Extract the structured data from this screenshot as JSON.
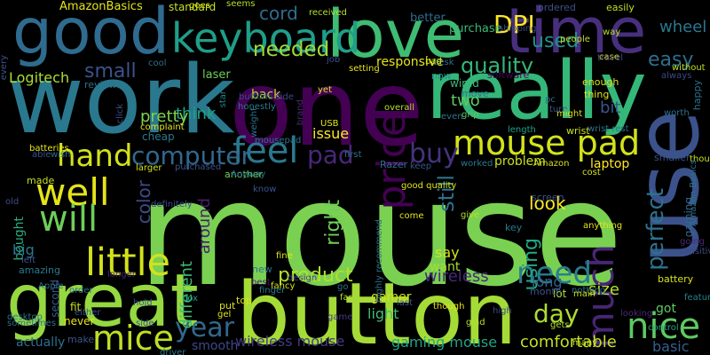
{
  "words": [
    {
      "text": "mouse",
      "color": "#7ad151"
    },
    {
      "text": "one",
      "color": "#440154"
    },
    {
      "text": "work",
      "color": "#2a788e"
    },
    {
      "text": "really",
      "color": "#35b779"
    },
    {
      "text": "button",
      "color": "#a5db36"
    },
    {
      "text": "great",
      "color": "#95d840"
    },
    {
      "text": "love",
      "color": "#3fbc73"
    },
    {
      "text": "good",
      "color": "#2f6b8e"
    },
    {
      "text": "time",
      "color": "#472f7d"
    },
    {
      "text": "use",
      "color": "#3b528b"
    },
    {
      "text": "keyboard",
      "color": "#1f9e89"
    },
    {
      "text": "mouse pad",
      "color": "#d2e21b"
    },
    {
      "text": "price",
      "color": "#440154"
    },
    {
      "text": "much",
      "color": "#482677"
    },
    {
      "text": "little",
      "color": "#d2e21b"
    },
    {
      "text": "well",
      "color": "#e5e419"
    },
    {
      "text": "will",
      "color": "#6ece58"
    },
    {
      "text": "hand",
      "color": "#d2e21b"
    },
    {
      "text": "feel",
      "color": "#2a788e"
    },
    {
      "text": "mice",
      "color": "#bddf26"
    },
    {
      "text": "nice",
      "color": "#5ec962"
    },
    {
      "text": "computer",
      "color": "#31688e"
    },
    {
      "text": "need",
      "color": "#287d8e"
    },
    {
      "text": "DPI",
      "color": "#fde725"
    },
    {
      "text": "small",
      "color": "#3b528b"
    },
    {
      "text": "quality",
      "color": "#35b779"
    },
    {
      "text": "pad",
      "color": "#482878"
    },
    {
      "text": "needed",
      "color": "#a0da39"
    },
    {
      "text": "day",
      "color": "#addc30"
    },
    {
      "text": "year",
      "color": "#31688e"
    },
    {
      "text": "cord",
      "color": "#2e6e8e"
    },
    {
      "text": "easy",
      "color": "#2e6e8e"
    },
    {
      "text": "used",
      "color": "#21918c"
    },
    {
      "text": "product",
      "color": "#b5de2b"
    },
    {
      "text": "perfect",
      "color": "#2c728e"
    },
    {
      "text": "buy",
      "color": "#46337e"
    },
    {
      "text": "Logitech",
      "color": "#addc30"
    },
    {
      "text": "using",
      "color": "#22a884"
    },
    {
      "text": "still",
      "color": "#2c728e"
    },
    {
      "text": "wireless",
      "color": "#482878"
    },
    {
      "text": "wireless mouse",
      "color": "#443983"
    },
    {
      "text": "gaming mouse",
      "color": "#20a486"
    },
    {
      "text": "comfortable",
      "color": "#c2df23"
    },
    {
      "text": "color",
      "color": "#3e4989"
    },
    {
      "text": "right",
      "color": "#6ece58"
    },
    {
      "text": "size",
      "color": "#b5de2b"
    },
    {
      "text": "look",
      "color": "#fde725"
    },
    {
      "text": "two",
      "color": "#5ec962"
    },
    {
      "text": "bit",
      "color": "#39558c"
    },
    {
      "text": "wheel",
      "color": "#2a788e"
    },
    {
      "text": "think",
      "color": "#1fa188"
    },
    {
      "text": "pretty",
      "color": "#7fd34e"
    },
    {
      "text": "laptop",
      "color": "#fde725"
    },
    {
      "text": "problem",
      "color": "#c8e020"
    },
    {
      "text": "light",
      "color": "#3fbc73"
    },
    {
      "text": "long",
      "color": "#32648e"
    },
    {
      "text": "around",
      "color": "#481f70"
    },
    {
      "text": "basic",
      "color": "#355f8d"
    },
    {
      "text": "smooth",
      "color": "#3f4889"
    },
    {
      "text": "actually",
      "color": "#2d708e"
    },
    {
      "text": "bought",
      "color": "#26ad81"
    },
    {
      "text": "big",
      "color": "#2a788e"
    },
    {
      "text": "say",
      "color": "#d0e11c"
    },
    {
      "text": "want",
      "color": "#aadc32"
    },
    {
      "text": "issue",
      "color": "#fde725"
    },
    {
      "text": "cheap",
      "color": "#2a788e"
    },
    {
      "text": "laser",
      "color": "#6ece58"
    },
    {
      "text": "back",
      "color": "#a8db34"
    },
    {
      "text": "purchase",
      "color": "#3aba76"
    },
    {
      "text": "better",
      "color": "#2f6c8e"
    },
    {
      "text": "AmazonBasics",
      "color": "#e3e418"
    },
    {
      "text": "standard",
      "color": "#c5e021"
    },
    {
      "text": "seems",
      "color": "#b5de2b"
    },
    {
      "text": "ordered",
      "color": "#3b528b"
    },
    {
      "text": "easily",
      "color": "#c2df23"
    },
    {
      "text": "wired",
      "color": "#3bbb75"
    },
    {
      "text": "responsive",
      "color": "#e7e419"
    },
    {
      "text": "software",
      "color": "#450559"
    },
    {
      "text": "now",
      "color": "#1f958b"
    },
    {
      "text": "thing",
      "color": "#e2e418"
    },
    {
      "text": "enough",
      "color": "#d5e21a"
    },
    {
      "text": "happy",
      "color": "#2c728e"
    },
    {
      "text": "review",
      "color": "#2c728e"
    },
    {
      "text": "people",
      "color": "#c2df23"
    },
    {
      "text": "gaming",
      "color": "#31688e"
    },
    {
      "text": "battery",
      "color": "#d8e219"
    },
    {
      "text": "another",
      "color": "#70cf57"
    },
    {
      "text": "purchased",
      "color": "#3b528b"
    },
    {
      "text": "Amazon",
      "color": "#d5e21a"
    },
    {
      "text": "different",
      "color": "#3dbc74"
    },
    {
      "text": "box",
      "color": "#1fa188"
    },
    {
      "text": "gamer",
      "color": "#d2e21b"
    },
    {
      "text": "fit",
      "color": "#c5e021"
    },
    {
      "text": "got",
      "color": "#5ec962"
    },
    {
      "text": "lot",
      "color": "#a8db34"
    },
    {
      "text": "top",
      "color": "#d8e219"
    },
    {
      "text": "game",
      "color": "#443983"
    },
    {
      "text": "second",
      "color": "#365d8d"
    },
    {
      "text": "made",
      "color": "#c8e020"
    },
    {
      "text": "new",
      "color": "#2c728e"
    },
    {
      "text": "never",
      "color": "#e5e419"
    },
    {
      "text": "make",
      "color": "#3a548c"
    },
    {
      "text": "amazing",
      "color": "#297b8e"
    },
    {
      "text": "mousepad",
      "color": "#2b748e"
    },
    {
      "text": "Razer",
      "color": "#2c718e"
    },
    {
      "text": "keep",
      "color": "#3a548c"
    },
    {
      "text": "worked",
      "color": "#2a778e"
    },
    {
      "text": "screen",
      "color": "#39558c"
    },
    {
      "text": "key",
      "color": "#2a788e"
    },
    {
      "text": "fancy",
      "color": "#d2e21b"
    },
    {
      "text": "put",
      "color": "#d8e219"
    },
    {
      "text": "gel",
      "color": "#e7e419"
    },
    {
      "text": "best",
      "color": "#48186a"
    },
    {
      "text": "month",
      "color": "#3b528b"
    },
    {
      "text": "feature",
      "color": "#26828e"
    },
    {
      "text": "glad",
      "color": "#b8de29"
    },
    {
      "text": "looking",
      "color": "#482878"
    },
    {
      "text": "many",
      "color": "#c8e020"
    },
    {
      "text": "side",
      "color": "#3b528b"
    },
    {
      "text": "finger",
      "color": "#2a788e"
    },
    {
      "text": "design",
      "color": "#3e4989"
    },
    {
      "text": "fine",
      "color": "#e1e418"
    },
    {
      "text": "far",
      "color": "#b2dd2d"
    },
    {
      "text": "control",
      "color": "#22a884"
    },
    {
      "text": "gets",
      "color": "#b5de2b"
    },
    {
      "text": "smaller",
      "color": "#3b528b"
    },
    {
      "text": "cost",
      "color": "#d0e11c"
    },
    {
      "text": "wrist",
      "color": "#c8e020"
    },
    {
      "text": "wrist rest",
      "color": "#2c728e"
    },
    {
      "text": "turn",
      "color": "#3a548c"
    },
    {
      "text": "way",
      "color": "#b8de29"
    },
    {
      "text": "pc",
      "color": "#2d708e"
    },
    {
      "text": "case",
      "color": "#e5e419"
    },
    {
      "text": "without",
      "color": "#c2df23"
    },
    {
      "text": "travel",
      "color": "#3f4889"
    },
    {
      "text": "always",
      "color": "#3e4989"
    },
    {
      "text": "might",
      "color": "#d5e21a"
    },
    {
      "text": "worth",
      "color": "#2c728e"
    },
    {
      "text": "length",
      "color": "#1fa188"
    },
    {
      "text": "grip",
      "color": "#5ec962"
    },
    {
      "text": "move",
      "color": "#2a788e"
    },
    {
      "text": "desk",
      "color": "#2c728e"
    },
    {
      "text": "bad",
      "color": "#d2e21b"
    },
    {
      "text": "job",
      "color": "#3b528b"
    },
    {
      "text": "setting",
      "color": "#e7e419"
    },
    {
      "text": "yet",
      "color": "#d8e219"
    },
    {
      "text": "USB",
      "color": "#e1e418"
    },
    {
      "text": "overall",
      "color": "#b5de2b"
    },
    {
      "text": "brand",
      "color": "#482878"
    },
    {
      "text": "buttons side",
      "color": "#3e4989"
    },
    {
      "text": "star",
      "color": "#26828e"
    },
    {
      "text": "cool",
      "color": "#2e6e8e"
    },
    {
      "text": "complaint",
      "color": "#e5e419"
    },
    {
      "text": "weight",
      "color": "#2d708e"
    },
    {
      "text": "click",
      "color": "#3b528b"
    },
    {
      "text": "goes",
      "color": "#d8e219"
    },
    {
      "text": "received",
      "color": "#b5de2b"
    },
    {
      "text": "shipping",
      "color": "#3e4989"
    },
    {
      "text": "every",
      "color": "#3a548c"
    },
    {
      "text": "batteries",
      "color": "#e7e419"
    },
    {
      "text": "able",
      "color": "#3b528b"
    },
    {
      "text": "wish",
      "color": "#2e6e8e"
    },
    {
      "text": "larger",
      "color": "#d2e21b"
    },
    {
      "text": "old",
      "color": "#3e4989"
    },
    {
      "text": "left",
      "color": "#3a548c"
    },
    {
      "text": "honestly",
      "color": "#2a788e"
    },
    {
      "text": "Anyway",
      "color": "#2c728e"
    },
    {
      "text": "first",
      "color": "#2d708e"
    },
    {
      "text": "even",
      "color": "#2a788e"
    },
    {
      "text": "good quality",
      "color": "#e1e418"
    },
    {
      "text": "highly recommend",
      "color": "#2d708e"
    },
    {
      "text": "come",
      "color": "#e5e419"
    },
    {
      "text": "give",
      "color": "#b5de2b"
    },
    {
      "text": "anything",
      "color": "#e3e418"
    },
    {
      "text": "going",
      "color": "#482878"
    },
    {
      "text": "sensitivity",
      "color": "#3e4989"
    },
    {
      "text": "thought",
      "color": "#c5e021"
    },
    {
      "text": "Amazon Basics",
      "color": "#2c728e"
    },
    {
      "text": "longer",
      "color": "#482878"
    },
    {
      "text": "definitely",
      "color": "#3e4989"
    },
    {
      "text": "Apple",
      "color": "#31688e"
    },
    {
      "text": "desktop",
      "color": "#2a788e"
    },
    {
      "text": "sometimes",
      "color": "#2e6e8e"
    },
    {
      "text": "either",
      "color": "#3b528b"
    },
    {
      "text": "order",
      "color": "#2d708e"
    },
    {
      "text": "hold",
      "color": "#3a548c"
    },
    {
      "text": "driver",
      "color": "#2a788e"
    },
    {
      "text": "know",
      "color": "#3b528b"
    },
    {
      "text": "go",
      "color": "#2c728e"
    },
    {
      "text": "last",
      "color": "#3b528b"
    },
    {
      "text": "though",
      "color": "#e5e419"
    },
    {
      "text": "high",
      "color": "#3e4989"
    },
    {
      "text": "nothing",
      "color": "#2e6e8e"
    },
    {
      "text": "main",
      "color": "#c8e020"
    }
  ]
}
